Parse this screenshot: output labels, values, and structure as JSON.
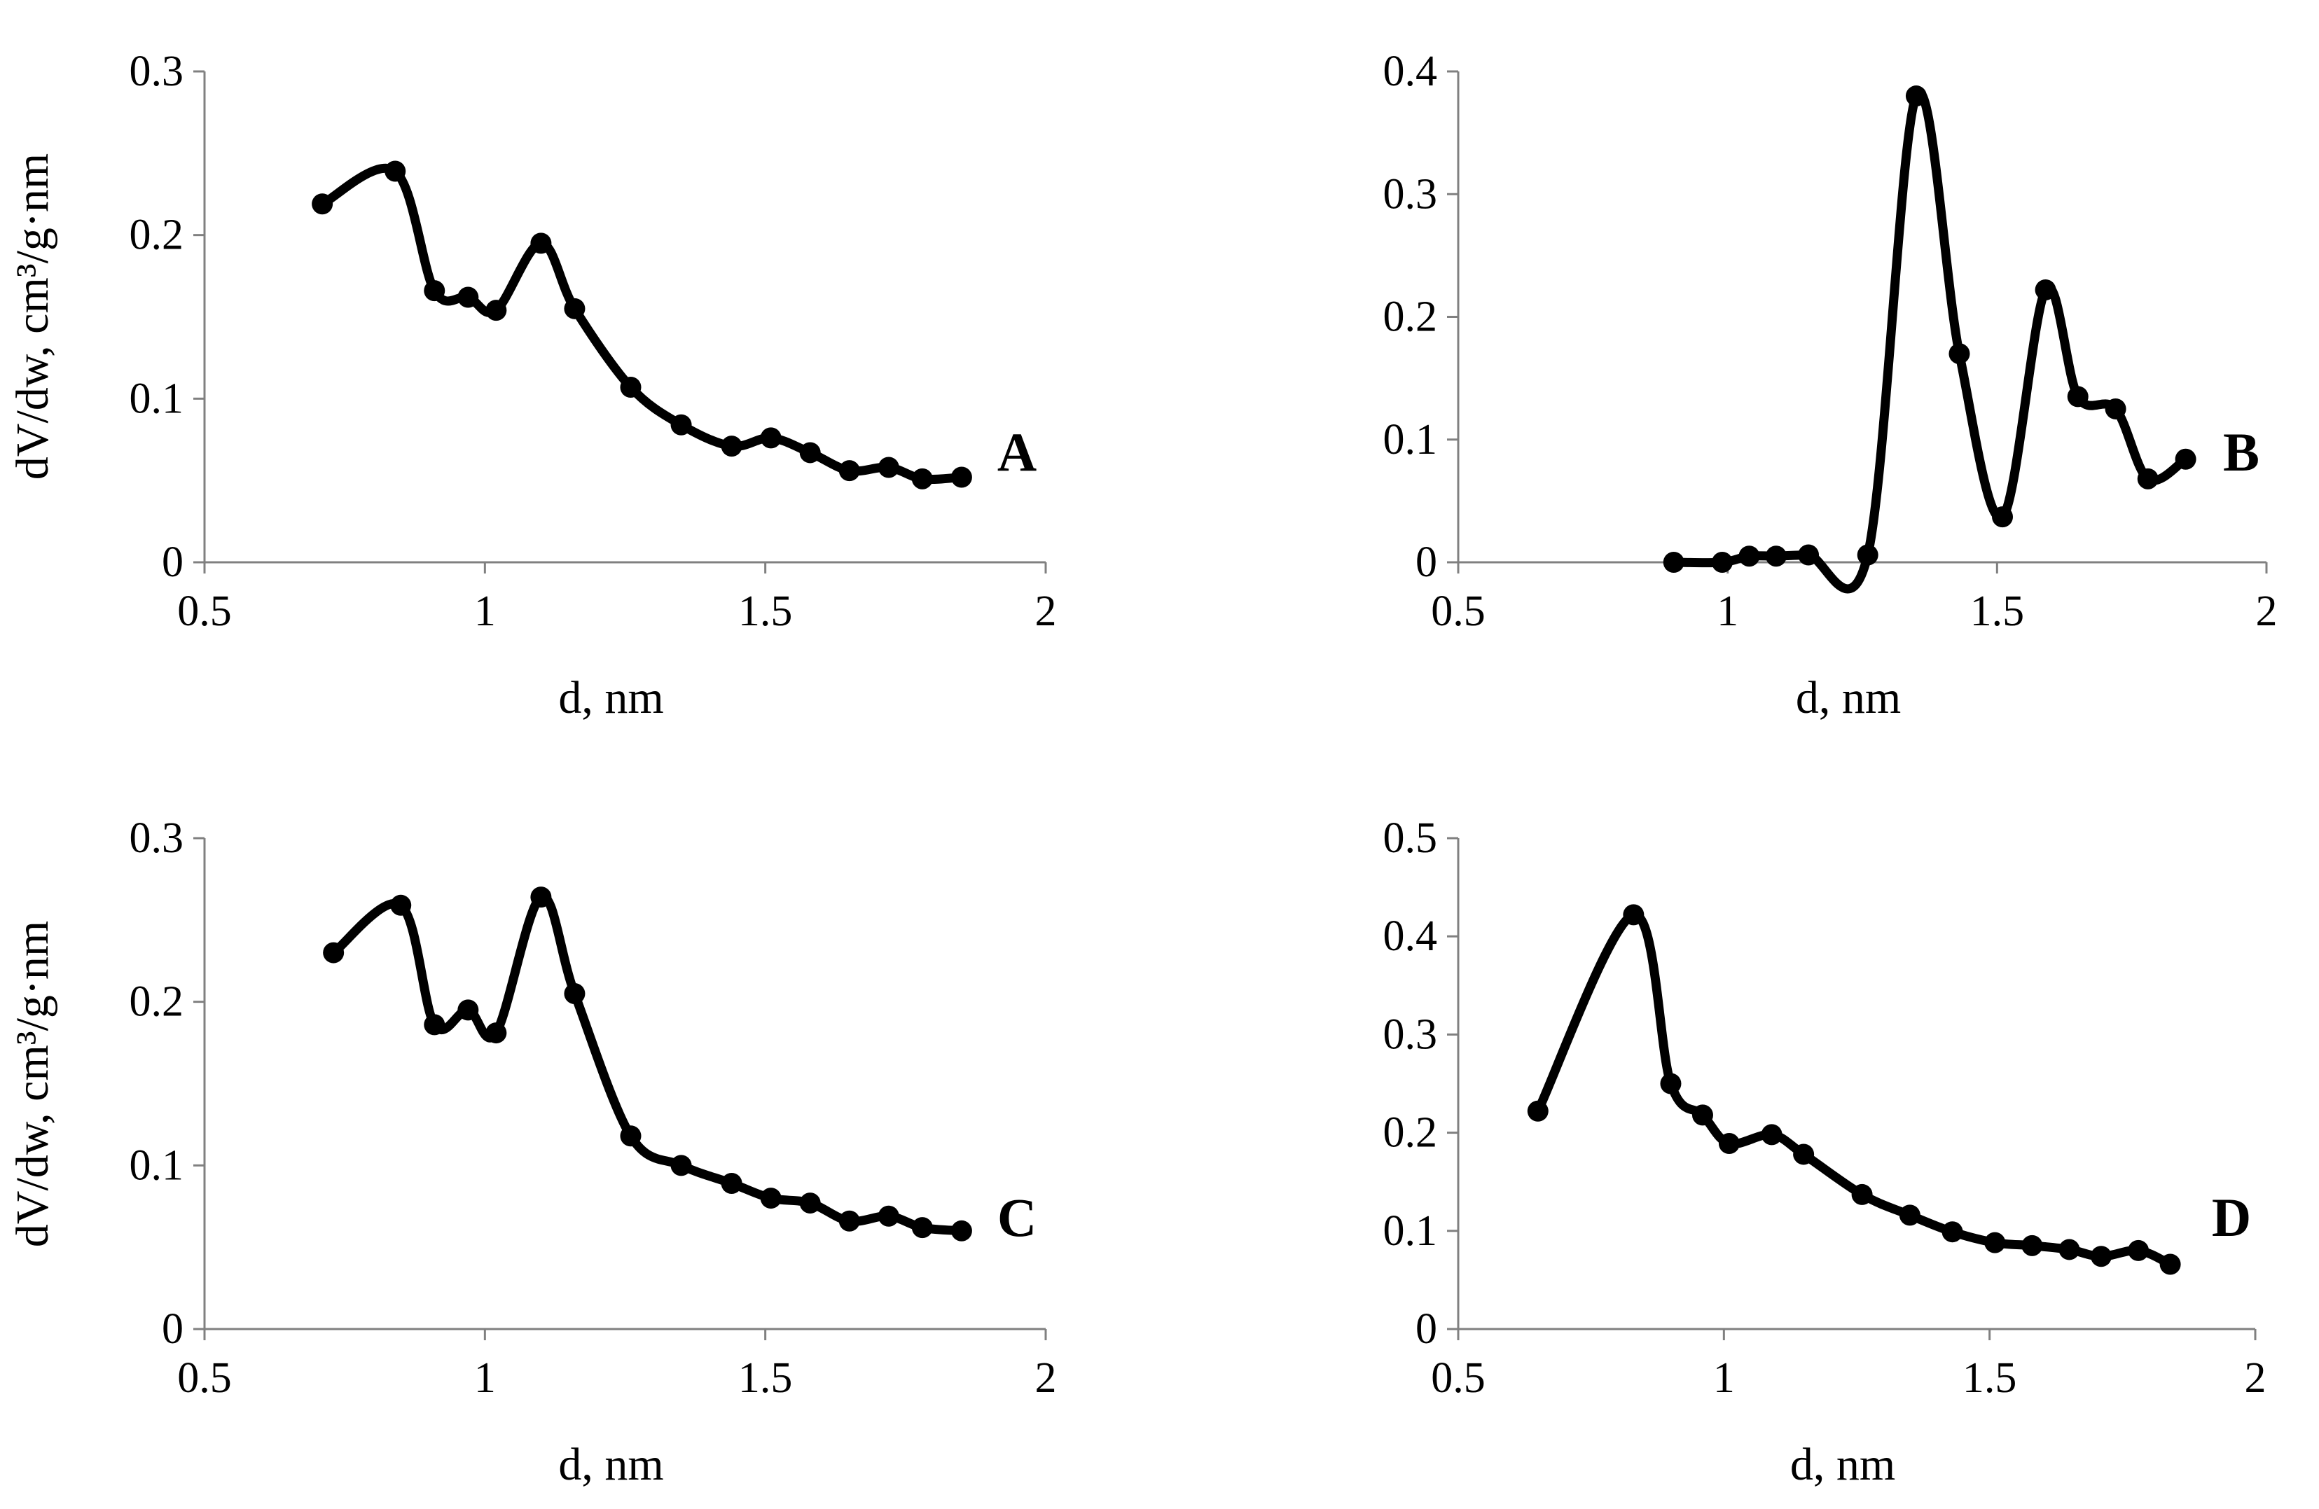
{
  "chart_data": [
    {
      "type": "line",
      "panel": "A",
      "title": "",
      "xlabel": "d, nm",
      "ylabel": "dV/dw, cm³/g·nm",
      "xlim": [
        0.5,
        2
      ],
      "ylim": [
        0,
        0.3
      ],
      "x_ticks": [
        "0.5",
        "1",
        "1.5",
        "2"
      ],
      "y_ticks": [
        "0",
        "0.1",
        "0.2",
        "0.3"
      ],
      "grid": false,
      "x": [
        0.71,
        0.84,
        0.91,
        0.97,
        1.02,
        1.1,
        1.16,
        1.26,
        1.35,
        1.44,
        1.51,
        1.58,
        1.65,
        1.72,
        1.78,
        1.85
      ],
      "y": [
        0.219,
        0.239,
        0.166,
        0.162,
        0.154,
        0.195,
        0.155,
        0.107,
        0.084,
        0.071,
        0.076,
        0.067,
        0.056,
        0.058,
        0.051,
        0.052
      ]
    },
    {
      "type": "line",
      "panel": "B",
      "title": "",
      "xlabel": "d, nm",
      "ylabel": "",
      "xlim": [
        0.5,
        2
      ],
      "ylim": [
        0,
        0.4
      ],
      "x_ticks": [
        "0.5",
        "1",
        "1.5",
        "2"
      ],
      "y_ticks": [
        "0",
        "0.1",
        "0.2",
        "0.3",
        "0.4"
      ],
      "grid": false,
      "x": [
        0.9,
        0.99,
        1.04,
        1.09,
        1.15,
        1.26,
        1.35,
        1.43,
        1.51,
        1.59,
        1.65,
        1.72,
        1.78,
        1.85
      ],
      "y": [
        0.0,
        0.0,
        0.005,
        0.005,
        0.006,
        0.006,
        0.38,
        0.17,
        0.037,
        0.222,
        0.135,
        0.125,
        0.068,
        0.084
      ]
    },
    {
      "type": "line",
      "panel": "C",
      "title": "",
      "xlabel": "d, nm",
      "ylabel": "dV/dw, cm³/g·nm",
      "xlim": [
        0.5,
        2
      ],
      "ylim": [
        0,
        0.3
      ],
      "x_ticks": [
        "0.5",
        "1",
        "1.5",
        "2"
      ],
      "y_ticks": [
        "0",
        "0.1",
        "0.2",
        "0.3"
      ],
      "grid": false,
      "x": [
        0.73,
        0.85,
        0.91,
        0.97,
        1.02,
        1.1,
        1.16,
        1.26,
        1.35,
        1.44,
        1.51,
        1.58,
        1.65,
        1.72,
        1.78,
        1.85
      ],
      "y": [
        0.23,
        0.259,
        0.186,
        0.195,
        0.181,
        0.264,
        0.205,
        0.118,
        0.1,
        0.089,
        0.08,
        0.077,
        0.066,
        0.069,
        0.062,
        0.06
      ]
    },
    {
      "type": "line",
      "panel": "D",
      "title": "",
      "xlabel": "d, nm",
      "ylabel": "",
      "xlim": [
        0.5,
        2
      ],
      "ylim": [
        0,
        0.5
      ],
      "x_ticks": [
        "0.5",
        "1",
        "1.5",
        "2"
      ],
      "y_ticks": [
        "0",
        "0.1",
        "0.2",
        "0.3",
        "0.4",
        "0.5"
      ],
      "grid": false,
      "x": [
        0.65,
        0.83,
        0.9,
        0.96,
        1.01,
        1.09,
        1.15,
        1.26,
        1.35,
        1.43,
        1.51,
        1.58,
        1.65,
        1.71,
        1.78,
        1.84
      ],
      "y": [
        0.222,
        0.422,
        0.25,
        0.218,
        0.189,
        0.198,
        0.178,
        0.137,
        0.116,
        0.099,
        0.088,
        0.085,
        0.081,
        0.074,
        0.08,
        0.066
      ]
    }
  ]
}
